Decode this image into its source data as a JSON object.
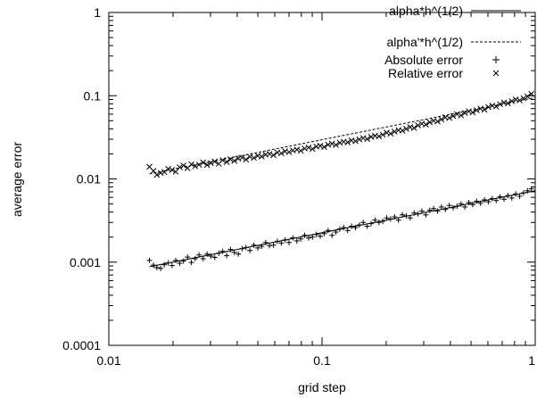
{
  "chart_data": {
    "type": "scatter",
    "title": "",
    "xlabel": "grid step",
    "ylabel": "average error",
    "xscale": "log",
    "yscale": "log",
    "xlim": [
      0.01,
      1
    ],
    "ylim": [
      0.0001,
      1
    ],
    "x_ticks": [
      {
        "value": 0.01,
        "label": "0.01"
      },
      {
        "value": 0.1,
        "label": "0.1"
      },
      {
        "value": 1,
        "label": "1"
      }
    ],
    "y_ticks": [
      {
        "value": 0.0001,
        "label": "0.0001"
      },
      {
        "value": 0.001,
        "label": "0.001"
      },
      {
        "value": 0.01,
        "label": "0.01"
      },
      {
        "value": 0.1,
        "label": "0.1"
      },
      {
        "value": 1,
        "label": "1"
      }
    ],
    "grid": false,
    "legend_position": "top-right",
    "series": [
      {
        "name": "alpha*h^(1/2)",
        "type": "line",
        "style": "solid",
        "x": [
          0.0155,
          1.0
        ],
        "y": [
          0.00088,
          0.0072
        ]
      },
      {
        "name": "alpha'*h^(1/2)",
        "type": "line",
        "style": "dashed",
        "x": [
          0.0155,
          1.0
        ],
        "y": [
          0.0115,
          0.095
        ]
      },
      {
        "name": "Absolute error",
        "type": "scatter",
        "marker": "plus",
        "x": [
          0.0155,
          0.0162,
          0.0168,
          0.0175,
          0.0182,
          0.019,
          0.0198,
          0.0206,
          0.0215,
          0.0224,
          0.0234,
          0.0244,
          0.0254,
          0.0265,
          0.0277,
          0.0289,
          0.0301,
          0.0314,
          0.0328,
          0.0342,
          0.0357,
          0.0372,
          0.0388,
          0.0405,
          0.0422,
          0.044,
          0.0459,
          0.0479,
          0.05,
          0.0521,
          0.0544,
          0.0567,
          0.0592,
          0.0617,
          0.0644,
          0.0671,
          0.07,
          0.073,
          0.0762,
          0.0795,
          0.0829,
          0.0865,
          0.0902,
          0.0941,
          0.0981,
          0.1024,
          0.1068,
          0.1114,
          0.1162,
          0.1212,
          0.1264,
          0.1319,
          0.1376,
          0.1435,
          0.1497,
          0.1561,
          0.1629,
          0.1699,
          0.1772,
          0.1849,
          0.1928,
          0.2011,
          0.2098,
          0.2189,
          0.2283,
          0.2381,
          0.2484,
          0.2591,
          0.2703,
          0.2819,
          0.2941,
          0.3068,
          0.32,
          0.3338,
          0.3482,
          0.3632,
          0.3789,
          0.3952,
          0.4122,
          0.43,
          0.4486,
          0.4679,
          0.4881,
          0.5091,
          0.5311,
          0.554,
          0.5779,
          0.6028,
          0.6288,
          0.6559,
          0.6842,
          0.7137,
          0.7445,
          0.7766,
          0.8101,
          0.845,
          0.8815,
          0.9195,
          0.9592
        ],
        "y": [
          0.00105,
          0.00092,
          0.00086,
          0.00084,
          0.00093,
          0.00098,
          0.00091,
          0.00105,
          0.00097,
          0.00103,
          0.00115,
          0.00099,
          0.0011,
          0.00122,
          0.0011,
          0.00125,
          0.00118,
          0.00114,
          0.00128,
          0.00135,
          0.0012,
          0.00142,
          0.00131,
          0.00125,
          0.00145,
          0.0015,
          0.00138,
          0.0016,
          0.00148,
          0.00155,
          0.00172,
          0.00158,
          0.0016,
          0.00178,
          0.0017,
          0.00185,
          0.00172,
          0.00196,
          0.0018,
          0.0019,
          0.0021,
          0.00195,
          0.002,
          0.00215,
          0.00205,
          0.0022,
          0.0024,
          0.0021,
          0.0023,
          0.0025,
          0.0026,
          0.0024,
          0.0027,
          0.0026,
          0.0028,
          0.003,
          0.0027,
          0.0029,
          0.0032,
          0.003,
          0.0031,
          0.0034,
          0.0033,
          0.0035,
          0.0032,
          0.0037,
          0.0036,
          0.0034,
          0.0039,
          0.0038,
          0.0041,
          0.0037,
          0.0042,
          0.0044,
          0.0041,
          0.0046,
          0.0043,
          0.0048,
          0.0045,
          0.0047,
          0.005,
          0.0046,
          0.0052,
          0.0049,
          0.0054,
          0.0051,
          0.0056,
          0.0053,
          0.0058,
          0.0055,
          0.0061,
          0.0057,
          0.0063,
          0.0059,
          0.0066,
          0.0062,
          0.0068,
          0.0072,
          0.0076
        ]
      },
      {
        "name": "Relative error",
        "type": "scatter",
        "marker": "cross",
        "x": [
          0.0155,
          0.0162,
          0.0168,
          0.0175,
          0.0182,
          0.019,
          0.0198,
          0.0206,
          0.0215,
          0.0224,
          0.0234,
          0.0244,
          0.0254,
          0.0265,
          0.0277,
          0.0289,
          0.0301,
          0.0314,
          0.0328,
          0.0342,
          0.0357,
          0.0372,
          0.0388,
          0.0405,
          0.0422,
          0.044,
          0.0459,
          0.0479,
          0.05,
          0.0521,
          0.0544,
          0.0567,
          0.0592,
          0.0617,
          0.0644,
          0.0671,
          0.07,
          0.073,
          0.0762,
          0.0795,
          0.0829,
          0.0865,
          0.0902,
          0.0941,
          0.0981,
          0.1024,
          0.1068,
          0.1114,
          0.1162,
          0.1212,
          0.1264,
          0.1319,
          0.1376,
          0.1435,
          0.1497,
          0.1561,
          0.1629,
          0.1699,
          0.1772,
          0.1849,
          0.1928,
          0.2011,
          0.2098,
          0.2189,
          0.2283,
          0.2381,
          0.2484,
          0.2591,
          0.2703,
          0.2819,
          0.2941,
          0.3068,
          0.32,
          0.3338,
          0.3482,
          0.3632,
          0.3789,
          0.3952,
          0.4122,
          0.43,
          0.4486,
          0.4679,
          0.4881,
          0.5091,
          0.5311,
          0.554,
          0.5779,
          0.6028,
          0.6288,
          0.6559,
          0.6842,
          0.7137,
          0.7445,
          0.7766,
          0.8101,
          0.845,
          0.8815,
          0.9195,
          0.9592
        ],
        "y": [
          0.014,
          0.0125,
          0.0112,
          0.0118,
          0.0121,
          0.0132,
          0.0128,
          0.0122,
          0.0138,
          0.0145,
          0.0135,
          0.015,
          0.0142,
          0.0148,
          0.0158,
          0.0147,
          0.0155,
          0.0162,
          0.0152,
          0.0168,
          0.016,
          0.0172,
          0.0165,
          0.0176,
          0.018,
          0.0171,
          0.0185,
          0.0179,
          0.019,
          0.0186,
          0.0196,
          0.02,
          0.0193,
          0.0208,
          0.0203,
          0.0215,
          0.021,
          0.022,
          0.0225,
          0.0218,
          0.0232,
          0.0238,
          0.0229,
          0.0245,
          0.025,
          0.0242,
          0.0258,
          0.0265,
          0.0256,
          0.0272,
          0.028,
          0.0275,
          0.029,
          0.0285,
          0.0298,
          0.031,
          0.0302,
          0.032,
          0.033,
          0.0325,
          0.034,
          0.036,
          0.035,
          0.037,
          0.0385,
          0.038,
          0.04,
          0.042,
          0.041,
          0.044,
          0.046,
          0.045,
          0.048,
          0.05,
          0.049,
          0.052,
          0.055,
          0.054,
          0.057,
          0.06,
          0.058,
          0.062,
          0.065,
          0.063,
          0.067,
          0.07,
          0.068,
          0.073,
          0.076,
          0.074,
          0.079,
          0.083,
          0.081,
          0.086,
          0.09,
          0.088,
          0.093,
          0.098,
          0.105
        ]
      }
    ]
  }
}
